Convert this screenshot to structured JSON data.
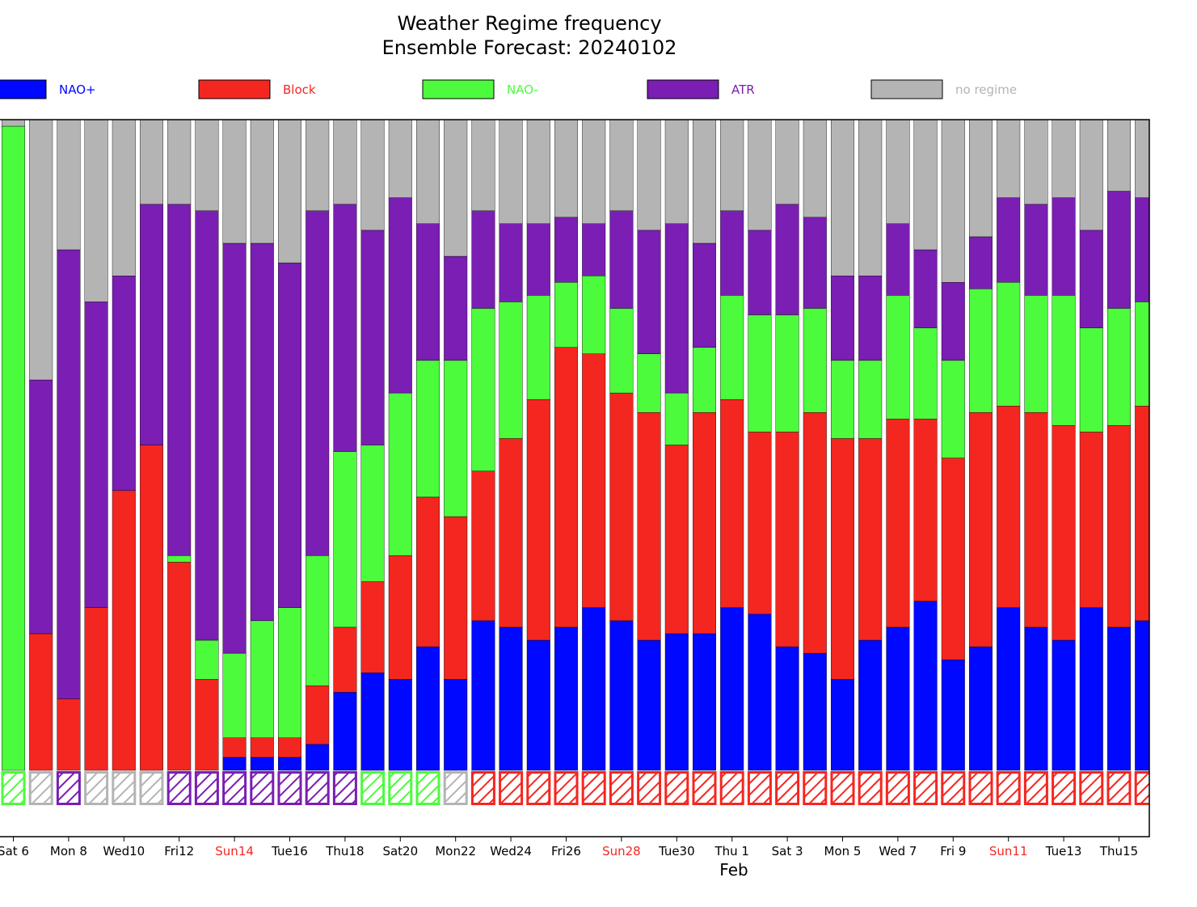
{
  "chart_data": {
    "type": "bar",
    "stacked": true,
    "title": "Weather Regime frequency",
    "subtitle": "Ensemble Forecast: 20240102",
    "xlabel": "Feb",
    "ylabel": "",
    "ylim": [
      0,
      100
    ],
    "legend_position": "top",
    "regimes": [
      {
        "key": "nao_plus",
        "name": "NAO+",
        "color": "#0008ff"
      },
      {
        "key": "block",
        "name": "Block",
        "color": "#f42620"
      },
      {
        "key": "nao_minus",
        "name": "NAO-",
        "color": "#4cfb3c"
      },
      {
        "key": "atr",
        "name": "ATR",
        "color": "#7a1eb4"
      },
      {
        "key": "no_regime",
        "name": "no regime",
        "color": "#b4b4b4"
      }
    ],
    "tick_labels": [
      {
        "text": "Sat 6",
        "color": "#000000"
      },
      {
        "text": "Mon 8",
        "color": "#000000"
      },
      {
        "text": "Wed10",
        "color": "#000000"
      },
      {
        "text": "Fri12",
        "color": "#000000"
      },
      {
        "text": "Sun14",
        "color": "#f42620"
      },
      {
        "text": "Tue16",
        "color": "#000000"
      },
      {
        "text": "Thu18",
        "color": "#000000"
      },
      {
        "text": "Sat20",
        "color": "#000000"
      },
      {
        "text": "Mon22",
        "color": "#000000"
      },
      {
        "text": "Wed24",
        "color": "#000000"
      },
      {
        "text": "Fri26",
        "color": "#000000"
      },
      {
        "text": "Sun28",
        "color": "#f42620"
      },
      {
        "text": "Tue30",
        "color": "#000000"
      },
      {
        "text": "Thu 1",
        "color": "#000000"
      },
      {
        "text": "Sat 3",
        "color": "#000000"
      },
      {
        "text": "Mon 5",
        "color": "#000000"
      },
      {
        "text": "Wed 7",
        "color": "#000000"
      },
      {
        "text": "Fri 9",
        "color": "#000000"
      },
      {
        "text": "Sun11",
        "color": "#f42620"
      },
      {
        "text": "Tue13",
        "color": "#000000"
      },
      {
        "text": "Thu15",
        "color": "#000000"
      }
    ],
    "days": [
      {
        "nao_plus": 0,
        "block": 0,
        "nao_minus": 99,
        "atr": 0,
        "no_regime": 1,
        "dominant": "nao_minus"
      },
      {
        "nao_plus": 0,
        "block": 21,
        "nao_minus": 0,
        "atr": 39,
        "no_regime": 40,
        "dominant": "no_regime"
      },
      {
        "nao_plus": 0,
        "block": 11,
        "nao_minus": 0,
        "atr": 69,
        "no_regime": 20,
        "dominant": "atr"
      },
      {
        "nao_plus": 0,
        "block": 25,
        "nao_minus": 0,
        "atr": 47,
        "no_regime": 28,
        "dominant": "no_regime"
      },
      {
        "nao_plus": 0,
        "block": 43,
        "nao_minus": 0,
        "atr": 33,
        "no_regime": 24,
        "dominant": "no_regime"
      },
      {
        "nao_plus": 0,
        "block": 50,
        "nao_minus": 0,
        "atr": 37,
        "no_regime": 13,
        "dominant": "no_regime"
      },
      {
        "nao_plus": 0,
        "block": 32,
        "nao_minus": 1,
        "atr": 54,
        "no_regime": 13,
        "dominant": "atr"
      },
      {
        "nao_plus": 0,
        "block": 14,
        "nao_minus": 6,
        "atr": 66,
        "no_regime": 14,
        "dominant": "atr"
      },
      {
        "nao_plus": 2,
        "block": 3,
        "nao_minus": 13,
        "atr": 63,
        "no_regime": 19,
        "dominant": "atr"
      },
      {
        "nao_plus": 2,
        "block": 3,
        "nao_minus": 18,
        "atr": 58,
        "no_regime": 19,
        "dominant": "atr"
      },
      {
        "nao_plus": 2,
        "block": 3,
        "nao_minus": 20,
        "atr": 53,
        "no_regime": 22,
        "dominant": "atr"
      },
      {
        "nao_plus": 4,
        "block": 9,
        "nao_minus": 20,
        "atr": 53,
        "no_regime": 14,
        "dominant": "atr"
      },
      {
        "nao_plus": 12,
        "block": 10,
        "nao_minus": 27,
        "atr": 38,
        "no_regime": 13,
        "dominant": "atr"
      },
      {
        "nao_plus": 15,
        "block": 14,
        "nao_minus": 21,
        "atr": 33,
        "no_regime": 17,
        "dominant": "nao_minus"
      },
      {
        "nao_plus": 14,
        "block": 19,
        "nao_minus": 25,
        "atr": 30,
        "no_regime": 12,
        "dominant": "nao_minus"
      },
      {
        "nao_plus": 19,
        "block": 23,
        "nao_minus": 21,
        "atr": 21,
        "no_regime": 16,
        "dominant": "nao_minus"
      },
      {
        "nao_plus": 14,
        "block": 25,
        "nao_minus": 24,
        "atr": 16,
        "no_regime": 21,
        "dominant": "no_regime"
      },
      {
        "nao_plus": 23,
        "block": 23,
        "nao_minus": 25,
        "atr": 15,
        "no_regime": 14,
        "dominant": "block"
      },
      {
        "nao_plus": 22,
        "block": 29,
        "nao_minus": 21,
        "atr": 12,
        "no_regime": 16,
        "dominant": "block"
      },
      {
        "nao_plus": 20,
        "block": 37,
        "nao_minus": 16,
        "atr": 11,
        "no_regime": 16,
        "dominant": "block"
      },
      {
        "nao_plus": 22,
        "block": 43,
        "nao_minus": 10,
        "atr": 10,
        "no_regime": 15,
        "dominant": "block"
      },
      {
        "nao_plus": 25,
        "block": 39,
        "nao_minus": 12,
        "atr": 8,
        "no_regime": 16,
        "dominant": "block"
      },
      {
        "nao_plus": 23,
        "block": 35,
        "nao_minus": 13,
        "atr": 15,
        "no_regime": 14,
        "dominant": "block"
      },
      {
        "nao_plus": 20,
        "block": 35,
        "nao_minus": 9,
        "atr": 19,
        "no_regime": 17,
        "dominant": "block"
      },
      {
        "nao_plus": 21,
        "block": 29,
        "nao_minus": 8,
        "atr": 26,
        "no_regime": 16,
        "dominant": "block"
      },
      {
        "nao_plus": 21,
        "block": 34,
        "nao_minus": 10,
        "atr": 16,
        "no_regime": 19,
        "dominant": "block"
      },
      {
        "nao_plus": 25,
        "block": 32,
        "nao_minus": 16,
        "atr": 13,
        "no_regime": 14,
        "dominant": "block"
      },
      {
        "nao_plus": 24,
        "block": 28,
        "nao_minus": 18,
        "atr": 13,
        "no_regime": 17,
        "dominant": "block"
      },
      {
        "nao_plus": 19,
        "block": 33,
        "nao_minus": 18,
        "atr": 17,
        "no_regime": 13,
        "dominant": "block"
      },
      {
        "nao_plus": 18,
        "block": 37,
        "nao_minus": 16,
        "atr": 14,
        "no_regime": 15,
        "dominant": "block"
      },
      {
        "nao_plus": 14,
        "block": 37,
        "nao_minus": 12,
        "atr": 13,
        "no_regime": 24,
        "dominant": "block"
      },
      {
        "nao_plus": 20,
        "block": 31,
        "nao_minus": 12,
        "atr": 13,
        "no_regime": 24,
        "dominant": "block"
      },
      {
        "nao_plus": 22,
        "block": 32,
        "nao_minus": 19,
        "atr": 11,
        "no_regime": 16,
        "dominant": "block"
      },
      {
        "nao_plus": 26,
        "block": 28,
        "nao_minus": 14,
        "atr": 12,
        "no_regime": 20,
        "dominant": "block"
      },
      {
        "nao_plus": 17,
        "block": 31,
        "nao_minus": 15,
        "atr": 12,
        "no_regime": 25,
        "dominant": "block"
      },
      {
        "nao_plus": 19,
        "block": 36,
        "nao_minus": 19,
        "atr": 8,
        "no_regime": 18,
        "dominant": "block"
      },
      {
        "nao_plus": 25,
        "block": 31,
        "nao_minus": 19,
        "atr": 13,
        "no_regime": 12,
        "dominant": "block"
      },
      {
        "nao_plus": 22,
        "block": 33,
        "nao_minus": 18,
        "atr": 14,
        "no_regime": 13,
        "dominant": "block"
      },
      {
        "nao_plus": 20,
        "block": 33,
        "nao_minus": 20,
        "atr": 15,
        "no_regime": 12,
        "dominant": "block"
      },
      {
        "nao_plus": 25,
        "block": 27,
        "nao_minus": 16,
        "atr": 15,
        "no_regime": 17,
        "dominant": "block"
      },
      {
        "nao_plus": 22,
        "block": 31,
        "nao_minus": 18,
        "atr": 18,
        "no_regime": 11,
        "dominant": "block"
      },
      {
        "nao_plus": 23,
        "block": 33,
        "nao_minus": 16,
        "atr": 16,
        "no_regime": 12,
        "dominant": "block"
      }
    ]
  }
}
